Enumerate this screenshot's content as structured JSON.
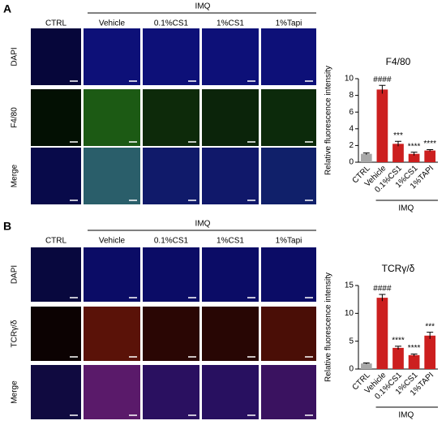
{
  "panels": [
    {
      "label": "A",
      "group": "IMQ",
      "columns": [
        "CTRL",
        "Vehicle",
        "0.1%CS1",
        "1%CS1",
        "1%Tapi"
      ],
      "rows": [
        "DAPI",
        "F4/80",
        "Merge"
      ]
    },
    {
      "label": "B",
      "group": "IMQ",
      "columns": [
        "CTRL",
        "Vehicle",
        "0.1%CS1",
        "1%CS1",
        "1%Tapi"
      ],
      "rows": [
        "DAPI",
        "TCRγ/δ",
        "Merge"
      ]
    }
  ],
  "chart_data": [
    {
      "type": "bar",
      "title": "F4/80",
      "y_label": "Relative fluorescence intensity",
      "group_label": "IMQ",
      "categories": [
        "CTRL",
        "Vehicle",
        "0.1%CS1",
        "1%CS1",
        "1%TAPI"
      ],
      "values": [
        1.0,
        8.7,
        2.2,
        1.0,
        1.4
      ],
      "errors": [
        0.1,
        0.5,
        0.3,
        0.2,
        0.1
      ],
      "annotations": [
        null,
        "####",
        "***",
        "****",
        "****"
      ],
      "colors": [
        "#a8a8a8",
        "#cc1f1f",
        "#cc1f1f",
        "#cc1f1f",
        "#cc1f1f"
      ],
      "ylim": [
        0,
        10
      ],
      "yticks": [
        0,
        2,
        4,
        6,
        8,
        10
      ]
    },
    {
      "type": "bar",
      "title": "TCRγ/δ",
      "y_label": "Relative fluorescence intensity",
      "group_label": "IMQ",
      "categories": [
        "CTRL",
        "Vehicle",
        "0.1%CS1",
        "1%CS1",
        "1%TAPI"
      ],
      "values": [
        1.0,
        12.8,
        3.8,
        2.5,
        6.0
      ],
      "errors": [
        0.1,
        0.6,
        0.3,
        0.2,
        0.6
      ],
      "annotations": [
        null,
        "####",
        "****",
        "****",
        "***"
      ],
      "colors": [
        "#a8a8a8",
        "#cc1f1f",
        "#cc1f1f",
        "#cc1f1f",
        "#cc1f1f"
      ],
      "ylim": [
        0,
        15
      ],
      "yticks": [
        0,
        5,
        10,
        15
      ]
    }
  ]
}
